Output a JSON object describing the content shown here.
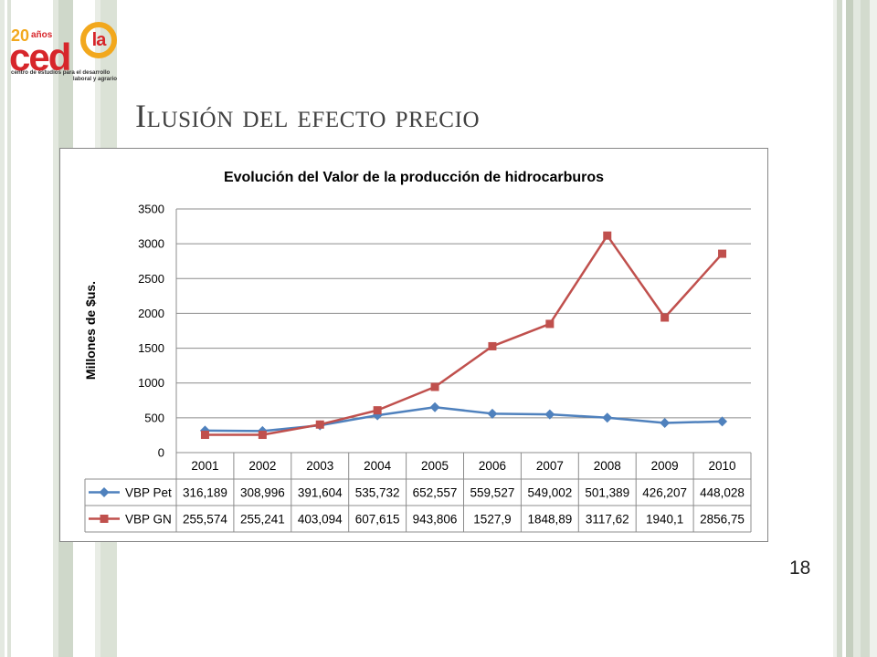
{
  "logo": {
    "years_number": "20",
    "years_word": "años",
    "brand_main": "ced",
    "brand_mark": "la",
    "tagline_line1": "centro de estudios para el desarrollo",
    "tagline_line2": "laboral y agrario"
  },
  "slide": {
    "title": "Ilusión del efecto precio",
    "page_number": "18"
  },
  "colors": {
    "title_text": "#404040",
    "logo_red": "#d7262b",
    "logo_orange": "#f2a81d",
    "series_pet": "#4f81bd",
    "series_gn": "#c0504d"
  },
  "chart_data": {
    "type": "line",
    "title": "Evolución del Valor de la producción de hidrocarburos",
    "xlabel": "",
    "ylabel": "Millones de $us.",
    "ylim": [
      0,
      3500
    ],
    "yticks": [
      0,
      500,
      1000,
      1500,
      2000,
      2500,
      3000,
      3500
    ],
    "grid": true,
    "legend": "bottom data table",
    "categories": [
      "2001",
      "2002",
      "2003",
      "2004",
      "2005",
      "2006",
      "2007",
      "2008",
      "2009",
      "2010"
    ],
    "series": [
      {
        "name": "VBP Pet",
        "color": "#4f81bd",
        "marker": "diamond",
        "values": [
          316.189,
          308.996,
          391.604,
          535.732,
          652.557,
          559.527,
          549.002,
          501.389,
          426.207,
          448.028
        ],
        "labels": [
          "316,189",
          "308,996",
          "391,604",
          "535,732",
          "652,557",
          "559,527",
          "549,002",
          "501,389",
          "426,207",
          "448,028"
        ]
      },
      {
        "name": "VBP GN",
        "color": "#c0504d",
        "marker": "square",
        "values": [
          255.574,
          255.241,
          403.094,
          607.615,
          943.806,
          1527.9,
          1848.89,
          3117.62,
          1940.1,
          2856.75
        ],
        "labels": [
          "255,574",
          "255,241",
          "403,094",
          "607,615",
          "943,806",
          "1527,9",
          "1848,89",
          "3117,62",
          "1940,1",
          "2856,75"
        ]
      }
    ]
  }
}
